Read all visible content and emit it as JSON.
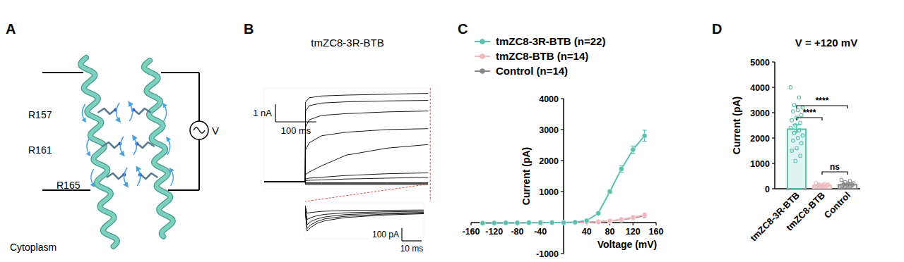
{
  "panel_a": {
    "panel_label": "A",
    "residues": [
      "R157",
      "R161",
      "R165"
    ],
    "source_label": "V",
    "region_label": "Cytoplasm"
  },
  "chart_data": [
    {
      "panel_label": "B",
      "type": "line",
      "title": "tmZC8-3R-BTB",
      "color": "#000000",
      "tick_labels": false,
      "x": [
        -100,
        0,
        1,
        10,
        40,
        100,
        200,
        300
      ],
      "xlim": [
        -100,
        310
      ],
      "ylim": [
        -400,
        5300
      ],
      "series": [
        {
          "values": [
            0,
            0,
            4500,
            4750,
            4850,
            4900,
            4950,
            5000
          ]
        },
        {
          "values": [
            0,
            0,
            4000,
            4300,
            4450,
            4520,
            4570,
            4600
          ]
        },
        {
          "values": [
            0,
            0,
            3100,
            3500,
            3750,
            3850,
            3950,
            4000
          ]
        },
        {
          "values": [
            0,
            0,
            1800,
            2200,
            2600,
            2800,
            2950,
            3000
          ]
        },
        {
          "values": [
            0,
            0,
            400,
            550,
            900,
            1500,
            1900,
            2100
          ]
        },
        {
          "values": [
            0,
            0,
            150,
            200,
            250,
            350,
            450,
            500
          ]
        },
        {
          "values": [
            0,
            0,
            60,
            80,
            100,
            150,
            200,
            250
          ]
        },
        {
          "values": [
            0,
            0,
            -60,
            -60,
            -60,
            -60,
            -60,
            -60
          ]
        },
        {
          "values": [
            0,
            0,
            -110,
            -110,
            -110,
            -110,
            -110,
            -110
          ]
        },
        {
          "values": [
            0,
            0,
            -160,
            -160,
            -160,
            -160,
            -160,
            -160
          ]
        }
      ],
      "current_bar": {
        "value": 1000,
        "label": "1 nA"
      },
      "time_bar": {
        "value": 100,
        "label": "100 ms"
      },
      "inset": {
        "type": "line",
        "color": "#000000",
        "tick_labels": false,
        "x": [
          0,
          1,
          3,
          6,
          10,
          20,
          40,
          60
        ],
        "xlim": [
          0,
          60
        ],
        "ylim": [
          -260,
          20
        ],
        "series": [
          {
            "values": [
              -40,
              -200,
              -170,
              -140,
              -120,
              -95,
              -75,
              -65
            ]
          },
          {
            "values": [
              -30,
              -180,
              -150,
              -125,
              -105,
              -85,
              -68,
              -60
            ]
          },
          {
            "values": [
              -20,
              -150,
              -125,
              -105,
              -90,
              -72,
              -60,
              -55
            ]
          },
          {
            "values": [
              -10,
              -110,
              -95,
              -80,
              -70,
              -58,
              -50,
              -46
            ]
          },
          {
            "values": [
              0,
              -60,
              -55,
              -50,
              -45,
              -40,
              -38,
              -36
            ]
          }
        ],
        "current_bar": {
          "value": 100,
          "label": "100 pA"
        },
        "time_bar": {
          "value": 10,
          "label": "10 ms"
        }
      }
    },
    {
      "panel_label": "C",
      "type": "line",
      "x_label": "Voltage (mV)",
      "y_label": "Current (pA)",
      "legend": "top-left",
      "x": [
        -140,
        -120,
        -100,
        -80,
        -60,
        -40,
        -20,
        0,
        20,
        40,
        60,
        80,
        100,
        120,
        140
      ],
      "xlim": [
        -160,
        160
      ],
      "ylim": [
        -1000,
        4000
      ],
      "xticks": [
        -160,
        -120,
        -80,
        -40,
        40,
        80,
        120,
        160
      ],
      "yticks": [
        -1000,
        1000,
        2000,
        3000,
        4000
      ],
      "series": [
        {
          "name": "tmZC8-3R-BTB (n=22)",
          "color": "#5bbfae",
          "marker": "circle",
          "values": [
            -20,
            -15,
            -10,
            -10,
            -5,
            -5,
            0,
            0,
            10,
            60,
            300,
            1000,
            1730,
            2350,
            2800
          ],
          "errors": [
            10,
            10,
            10,
            5,
            5,
            5,
            5,
            5,
            10,
            15,
            40,
            60,
            100,
            120,
            180
          ]
        },
        {
          "name": "tmZC8-BTB (n=14)",
          "color": "#f0b8c0",
          "marker": "circle",
          "values": [
            -10,
            -10,
            -5,
            -5,
            0,
            0,
            0,
            0,
            5,
            10,
            20,
            50,
            100,
            170,
            250
          ],
          "errors": [
            5,
            5,
            5,
            5,
            5,
            5,
            5,
            5,
            5,
            5,
            10,
            15,
            20,
            30,
            40
          ]
        },
        {
          "name": "Control (n=14)",
          "color": "#8a8a8a",
          "marker": "circle",
          "values": [
            -10,
            -10,
            -5,
            -5,
            0,
            0,
            0,
            0,
            5,
            10,
            20,
            50,
            90,
            150,
            220
          ],
          "errors": [
            5,
            5,
            5,
            5,
            5,
            5,
            5,
            5,
            5,
            5,
            10,
            15,
            20,
            25,
            35
          ]
        }
      ]
    },
    {
      "panel_label": "D",
      "type": "bar",
      "title": "V = +120 mV",
      "y_label": "Current (pA)",
      "categories": [
        "tmZC8-3R-BTB",
        "tmZC8-BTB",
        "Control"
      ],
      "values": [
        2350,
        130,
        160
      ],
      "errors": [
        170,
        20,
        30
      ],
      "colors": [
        "#5bbfae",
        "#f0b8c0",
        "#8a8a8a"
      ],
      "ylim": [
        0,
        5000
      ],
      "yticks": [
        0,
        1000,
        2000,
        3000,
        4000,
        5000
      ],
      "points": [
        [
          4000,
          3600,
          3300,
          3200,
          3100,
          3050,
          2900,
          2800,
          2700,
          2600,
          2500,
          2400,
          2300,
          2200,
          2100,
          2000,
          1900,
          1800,
          1600,
          1500,
          1300,
          1100
        ],
        [
          220,
          190,
          170,
          160,
          150,
          140,
          130,
          120,
          110,
          100,
          95,
          90,
          80,
          70
        ],
        [
          350,
          300,
          260,
          220,
          200,
          180,
          160,
          150,
          140,
          120,
          110,
          100,
          90,
          80
        ]
      ],
      "comparisons": [
        {
          "groups": [
            0,
            1
          ],
          "label": "****"
        },
        {
          "groups": [
            0,
            2
          ],
          "label": "****"
        },
        {
          "groups": [
            1,
            2
          ],
          "label": "ns"
        }
      ]
    }
  ]
}
